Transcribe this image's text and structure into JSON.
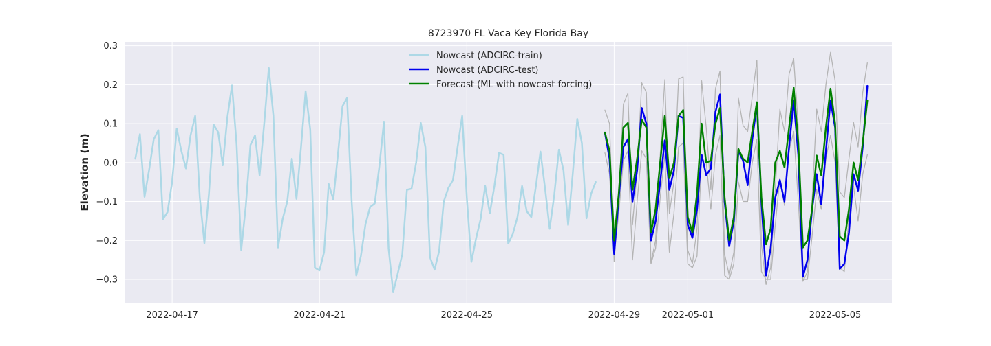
{
  "chart_data": {
    "type": "line",
    "title": "8723970 FL Vaca Key Florida Bay",
    "xlabel": "",
    "ylabel": "Elevation (m)",
    "x_axis": {
      "type": "date",
      "min": "2022-04-15T17:00",
      "max": "2022-05-06T13:00",
      "ticks": [
        "2022-04-17",
        "2022-04-21",
        "2022-04-25",
        "2022-04-29",
        "2022-05-01",
        "2022-05-05"
      ]
    },
    "y_axis": {
      "min": -0.36,
      "max": 0.31,
      "ticks": [
        -0.3,
        -0.2,
        -0.1,
        0.0,
        0.1,
        0.2,
        0.3
      ],
      "tick_labels": [
        "−0.3",
        "−0.2",
        "−0.1",
        "0.0",
        "0.1",
        "0.2",
        "0.3"
      ]
    },
    "grid": true,
    "legend_position": "upper-center",
    "background_color": "#eaeaf2",
    "series": [
      {
        "name": "Nowcast (ADCIRC-train)",
        "color": "#add8e6",
        "width": 2.5,
        "in_legend": true,
        "x": [
          "2022-04-16T00:00",
          "2022-04-16T03:00",
          "2022-04-16T06:00",
          "2022-04-16T09:00",
          "2022-04-16T12:00",
          "2022-04-16T15:00",
          "2022-04-16T18:00",
          "2022-04-16T21:00",
          "2022-04-17T00:00",
          "2022-04-17T03:00",
          "2022-04-17T06:00",
          "2022-04-17T09:00",
          "2022-04-17T12:00",
          "2022-04-17T15:00",
          "2022-04-17T18:00",
          "2022-04-17T21:00",
          "2022-04-18T00:00",
          "2022-04-18T03:00",
          "2022-04-18T06:00",
          "2022-04-18T09:00",
          "2022-04-18T12:00",
          "2022-04-18T15:00",
          "2022-04-18T18:00",
          "2022-04-18T21:00",
          "2022-04-19T00:00",
          "2022-04-19T03:00",
          "2022-04-19T06:00",
          "2022-04-19T09:00",
          "2022-04-19T12:00",
          "2022-04-19T15:00",
          "2022-04-19T18:00",
          "2022-04-19T21:00",
          "2022-04-20T00:00",
          "2022-04-20T03:00",
          "2022-04-20T06:00",
          "2022-04-20T09:00",
          "2022-04-20T12:00",
          "2022-04-20T15:00",
          "2022-04-20T18:00",
          "2022-04-20T21:00",
          "2022-04-21T00:00",
          "2022-04-21T03:00",
          "2022-04-21T06:00",
          "2022-04-21T09:00",
          "2022-04-21T12:00",
          "2022-04-21T15:00",
          "2022-04-21T18:00",
          "2022-04-21T21:00",
          "2022-04-22T00:00",
          "2022-04-22T03:00",
          "2022-04-22T06:00",
          "2022-04-22T09:00",
          "2022-04-22T12:00",
          "2022-04-22T15:00",
          "2022-04-22T18:00",
          "2022-04-22T21:00",
          "2022-04-23T00:00",
          "2022-04-23T03:00",
          "2022-04-23T06:00",
          "2022-04-23T09:00",
          "2022-04-23T12:00",
          "2022-04-23T15:00",
          "2022-04-23T18:00",
          "2022-04-23T21:00",
          "2022-04-24T00:00",
          "2022-04-24T03:00",
          "2022-04-24T06:00",
          "2022-04-24T09:00",
          "2022-04-24T12:00",
          "2022-04-24T15:00",
          "2022-04-24T18:00",
          "2022-04-24T21:00",
          "2022-04-25T00:00",
          "2022-04-25T03:00",
          "2022-04-25T06:00",
          "2022-04-25T09:00",
          "2022-04-25T12:00",
          "2022-04-25T15:00",
          "2022-04-25T18:00",
          "2022-04-25T21:00",
          "2022-04-26T00:00",
          "2022-04-26T03:00",
          "2022-04-26T06:00",
          "2022-04-26T09:00",
          "2022-04-26T12:00",
          "2022-04-26T15:00",
          "2022-04-26T18:00",
          "2022-04-26T21:00",
          "2022-04-27T00:00",
          "2022-04-27T03:00",
          "2022-04-27T06:00",
          "2022-04-27T09:00",
          "2022-04-27T12:00",
          "2022-04-27T15:00",
          "2022-04-27T18:00",
          "2022-04-27T21:00",
          "2022-04-28T00:00",
          "2022-04-28T03:00",
          "2022-04-28T06:00",
          "2022-04-28T09:00",
          "2022-04-28T12:00"
        ],
        "values": [
          0.01,
          0.073,
          -0.088,
          -0.018,
          0.06,
          0.083,
          -0.145,
          -0.127,
          -0.05,
          0.087,
          0.03,
          -0.015,
          0.07,
          0.12,
          -0.09,
          -0.207,
          -0.08,
          0.098,
          0.078,
          -0.007,
          0.117,
          0.198,
          0.046,
          -0.225,
          -0.11,
          0.045,
          0.07,
          -0.033,
          0.1,
          0.243,
          0.12,
          -0.218,
          -0.145,
          -0.1,
          0.01,
          -0.093,
          0.04,
          0.183,
          0.085,
          -0.27,
          -0.277,
          -0.23,
          -0.055,
          -0.095,
          0.02,
          0.145,
          0.166,
          -0.1,
          -0.29,
          -0.24,
          -0.158,
          -0.114,
          -0.105,
          -0.01,
          0.105,
          -0.22,
          -0.333,
          -0.285,
          -0.235,
          -0.07,
          -0.067,
          0.0,
          0.102,
          0.04,
          -0.243,
          -0.275,
          -0.227,
          -0.1,
          -0.065,
          -0.045,
          0.04,
          0.12,
          -0.09,
          -0.255,
          -0.195,
          -0.145,
          -0.06,
          -0.13,
          -0.06,
          0.025,
          0.02,
          -0.208,
          -0.183,
          -0.14,
          -0.06,
          -0.125,
          -0.14,
          -0.062,
          0.028,
          -0.066,
          -0.17,
          -0.083,
          0.033,
          -0.02,
          -0.16,
          -0.03,
          0.112,
          0.05,
          -0.143,
          -0.08,
          -0.05
        ]
      },
      {
        "name": "",
        "color": "#b4b4b4",
        "width": 1.3,
        "in_legend": false,
        "x": [
          "2022-04-28T18:00",
          "2022-04-28T21:00",
          "2022-04-29T00:00",
          "2022-04-29T03:00",
          "2022-04-29T06:00",
          "2022-04-29T09:00",
          "2022-04-29T12:00",
          "2022-04-29T15:00",
          "2022-04-29T18:00",
          "2022-04-29T21:00",
          "2022-04-30T00:00",
          "2022-04-30T03:00",
          "2022-04-30T06:00",
          "2022-04-30T09:00",
          "2022-04-30T12:00",
          "2022-04-30T15:00",
          "2022-04-30T18:00",
          "2022-04-30T21:00",
          "2022-05-01T00:00",
          "2022-05-01T03:00",
          "2022-05-01T06:00",
          "2022-05-01T09:00",
          "2022-05-01T12:00",
          "2022-05-01T15:00",
          "2022-05-01T18:00",
          "2022-05-01T21:00",
          "2022-05-02T00:00",
          "2022-05-02T03:00",
          "2022-05-02T06:00",
          "2022-05-02T09:00",
          "2022-05-02T12:00",
          "2022-05-02T15:00",
          "2022-05-02T18:00",
          "2022-05-02T21:00",
          "2022-05-03T00:00",
          "2022-05-03T03:00",
          "2022-05-03T06:00",
          "2022-05-03T09:00",
          "2022-05-03T12:00",
          "2022-05-03T15:00",
          "2022-05-03T18:00",
          "2022-05-03T21:00",
          "2022-05-04T00:00",
          "2022-05-04T03:00",
          "2022-05-04T06:00",
          "2022-05-04T09:00",
          "2022-05-04T12:00",
          "2022-05-04T15:00",
          "2022-05-04T18:00",
          "2022-05-04T21:00",
          "2022-05-05T00:00",
          "2022-05-05T03:00",
          "2022-05-05T06:00",
          "2022-05-05T09:00",
          "2022-05-05T12:00",
          "2022-05-05T15:00",
          "2022-05-05T18:00",
          "2022-05-05T21:00"
        ],
        "values": [
          0.135,
          0.1,
          -0.255,
          -0.1,
          0.15,
          0.178,
          -0.16,
          -0.02,
          0.205,
          0.18,
          -0.257,
          -0.2,
          0.02,
          0.213,
          -0.13,
          -0.05,
          0.215,
          0.22,
          -0.225,
          -0.26,
          -0.17,
          0.21,
          0.09,
          -0.07,
          0.19,
          0.235,
          -0.235,
          -0.29,
          -0.23,
          0.165,
          0.095,
          0.08,
          0.17,
          0.263,
          -0.21,
          -0.313,
          -0.27,
          -0.07,
          0.137,
          0.08,
          0.227,
          0.267,
          0.09,
          -0.305,
          -0.28,
          -0.1,
          0.137,
          0.08,
          0.2,
          0.283,
          0.21,
          -0.075,
          -0.09,
          0.01,
          0.103,
          0.04,
          0.18,
          0.256
        ]
      },
      {
        "name": "",
        "color": "#b4b4b4",
        "width": 1.3,
        "in_legend": false,
        "x": [
          "2022-04-28T18:00",
          "2022-04-28T21:00",
          "2022-04-29T00:00",
          "2022-04-29T03:00",
          "2022-04-29T06:00",
          "2022-04-29T09:00",
          "2022-04-29T12:00",
          "2022-04-29T15:00",
          "2022-04-29T18:00",
          "2022-04-29T21:00",
          "2022-04-30T00:00",
          "2022-04-30T03:00",
          "2022-04-30T06:00",
          "2022-04-30T09:00",
          "2022-04-30T12:00",
          "2022-04-30T15:00",
          "2022-04-30T18:00",
          "2022-04-30T21:00",
          "2022-05-01T00:00",
          "2022-05-01T03:00",
          "2022-05-01T06:00",
          "2022-05-01T09:00",
          "2022-05-01T12:00",
          "2022-05-01T15:00",
          "2022-05-01T18:00",
          "2022-05-01T21:00",
          "2022-05-02T00:00",
          "2022-05-02T03:00",
          "2022-05-02T06:00",
          "2022-05-02T09:00",
          "2022-05-02T12:00",
          "2022-05-02T15:00",
          "2022-05-02T18:00",
          "2022-05-02T21:00",
          "2022-05-03T00:00",
          "2022-05-03T03:00",
          "2022-05-03T06:00",
          "2022-05-03T09:00",
          "2022-05-03T12:00",
          "2022-05-03T15:00",
          "2022-05-03T18:00",
          "2022-05-03T21:00",
          "2022-05-04T00:00",
          "2022-05-04T03:00",
          "2022-05-04T06:00",
          "2022-05-04T09:00",
          "2022-05-04T12:00",
          "2022-05-04T15:00",
          "2022-05-04T18:00",
          "2022-05-04T21:00",
          "2022-05-05T00:00",
          "2022-05-05T03:00",
          "2022-05-05T06:00",
          "2022-05-05T09:00",
          "2022-05-05T12:00",
          "2022-05-05T15:00",
          "2022-05-05T18:00",
          "2022-05-05T21:00"
        ],
        "values": [
          0.025,
          -0.03,
          -0.24,
          -0.13,
          0.005,
          0.03,
          -0.25,
          -0.1,
          0.03,
          0.01,
          -0.26,
          -0.22,
          -0.09,
          0.02,
          -0.23,
          -0.13,
          0.04,
          0.05,
          -0.26,
          -0.27,
          -0.24,
          0.01,
          0.0,
          -0.12,
          0.02,
          0.07,
          -0.29,
          -0.3,
          -0.26,
          -0.05,
          -0.1,
          -0.1,
          0.0,
          0.06,
          -0.28,
          -0.3,
          -0.3,
          -0.16,
          -0.04,
          -0.11,
          0.03,
          0.08,
          -0.1,
          -0.3,
          -0.3,
          -0.19,
          -0.07,
          -0.12,
          0.01,
          0.07,
          0.0,
          -0.27,
          -0.28,
          -0.14,
          -0.06,
          -0.15,
          -0.03,
          0.02
        ]
      },
      {
        "name": "Nowcast (ADCIRC-test)",
        "color": "#0000ee",
        "width": 2.5,
        "in_legend": true,
        "x": [
          "2022-04-28T18:00",
          "2022-04-28T21:00",
          "2022-04-29T00:00",
          "2022-04-29T03:00",
          "2022-04-29T06:00",
          "2022-04-29T09:00",
          "2022-04-29T12:00",
          "2022-04-29T15:00",
          "2022-04-29T18:00",
          "2022-04-29T21:00",
          "2022-04-30T00:00",
          "2022-04-30T03:00",
          "2022-04-30T06:00",
          "2022-04-30T09:00",
          "2022-04-30T12:00",
          "2022-04-30T15:00",
          "2022-04-30T18:00",
          "2022-04-30T21:00",
          "2022-05-01T00:00",
          "2022-05-01T03:00",
          "2022-05-01T06:00",
          "2022-05-01T09:00",
          "2022-05-01T12:00",
          "2022-05-01T15:00",
          "2022-05-01T18:00",
          "2022-05-01T21:00",
          "2022-05-02T00:00",
          "2022-05-02T03:00",
          "2022-05-02T06:00",
          "2022-05-02T09:00",
          "2022-05-02T12:00",
          "2022-05-02T15:00",
          "2022-05-02T18:00",
          "2022-05-02T21:00",
          "2022-05-03T00:00",
          "2022-05-03T03:00",
          "2022-05-03T06:00",
          "2022-05-03T09:00",
          "2022-05-03T12:00",
          "2022-05-03T15:00",
          "2022-05-03T18:00",
          "2022-05-03T21:00",
          "2022-05-04T00:00",
          "2022-05-04T03:00",
          "2022-05-04T06:00",
          "2022-05-04T09:00",
          "2022-05-04T12:00",
          "2022-05-04T15:00",
          "2022-05-04T18:00",
          "2022-05-04T21:00",
          "2022-05-05T00:00",
          "2022-05-05T03:00",
          "2022-05-05T06:00",
          "2022-05-05T09:00",
          "2022-05-05T12:00",
          "2022-05-05T15:00",
          "2022-05-05T18:00",
          "2022-05-05T21:00"
        ],
        "values": [
          0.077,
          0.01,
          -0.235,
          -0.09,
          0.04,
          0.06,
          -0.1,
          -0.02,
          0.14,
          0.1,
          -0.2,
          -0.15,
          -0.05,
          0.057,
          -0.07,
          -0.02,
          0.12,
          0.115,
          -0.16,
          -0.193,
          -0.12,
          0.02,
          -0.032,
          -0.015,
          0.13,
          0.175,
          -0.1,
          -0.215,
          -0.15,
          0.03,
          0.005,
          -0.058,
          0.06,
          0.15,
          -0.1,
          -0.29,
          -0.22,
          -0.09,
          -0.045,
          -0.1,
          0.04,
          0.16,
          0.02,
          -0.293,
          -0.25,
          -0.12,
          -0.03,
          -0.107,
          0.03,
          0.16,
          0.09,
          -0.273,
          -0.26,
          -0.18,
          -0.03,
          -0.072,
          0.04,
          0.197
        ]
      },
      {
        "name": "Forecast (ML with nowcast forcing)",
        "color": "#008000",
        "width": 2.5,
        "in_legend": true,
        "x": [
          "2022-04-28T18:00",
          "2022-04-28T21:00",
          "2022-04-29T00:00",
          "2022-04-29T03:00",
          "2022-04-29T06:00",
          "2022-04-29T09:00",
          "2022-04-29T12:00",
          "2022-04-29T15:00",
          "2022-04-29T18:00",
          "2022-04-29T21:00",
          "2022-04-30T00:00",
          "2022-04-30T03:00",
          "2022-04-30T06:00",
          "2022-04-30T09:00",
          "2022-04-30T12:00",
          "2022-04-30T15:00",
          "2022-04-30T18:00",
          "2022-04-30T21:00",
          "2022-05-01T00:00",
          "2022-05-01T03:00",
          "2022-05-01T06:00",
          "2022-05-01T09:00",
          "2022-05-01T12:00",
          "2022-05-01T15:00",
          "2022-05-01T18:00",
          "2022-05-01T21:00",
          "2022-05-02T00:00",
          "2022-05-02T03:00",
          "2022-05-02T06:00",
          "2022-05-02T09:00",
          "2022-05-02T12:00",
          "2022-05-02T15:00",
          "2022-05-02T18:00",
          "2022-05-02T21:00",
          "2022-05-03T00:00",
          "2022-05-03T03:00",
          "2022-05-03T06:00",
          "2022-05-03T09:00",
          "2022-05-03T12:00",
          "2022-05-03T15:00",
          "2022-05-03T18:00",
          "2022-05-03T21:00",
          "2022-05-04T00:00",
          "2022-05-04T03:00",
          "2022-05-04T06:00",
          "2022-05-04T09:00",
          "2022-05-04T12:00",
          "2022-05-04T15:00",
          "2022-05-04T18:00",
          "2022-05-04T21:00",
          "2022-05-05T00:00",
          "2022-05-05T03:00",
          "2022-05-05T06:00",
          "2022-05-05T09:00",
          "2022-05-05T12:00",
          "2022-05-05T15:00",
          "2022-05-05T18:00",
          "2022-05-05T21:00"
        ],
        "values": [
          0.077,
          0.03,
          -0.2,
          -0.08,
          0.09,
          0.102,
          -0.07,
          0.01,
          0.11,
          0.09,
          -0.18,
          -0.12,
          0.0,
          0.12,
          -0.04,
          0.0,
          0.12,
          0.135,
          -0.14,
          -0.18,
          -0.08,
          0.1,
          0.0,
          0.005,
          0.1,
          0.14,
          -0.09,
          -0.2,
          -0.14,
          0.035,
          0.01,
          0.0,
          0.08,
          0.155,
          -0.09,
          -0.21,
          -0.17,
          0.0,
          0.03,
          -0.012,
          0.09,
          0.192,
          0.05,
          -0.218,
          -0.2,
          -0.12,
          0.018,
          -0.033,
          0.09,
          0.19,
          0.1,
          -0.19,
          -0.2,
          -0.12,
          0.0,
          -0.045,
          0.05,
          0.16
        ]
      }
    ]
  }
}
